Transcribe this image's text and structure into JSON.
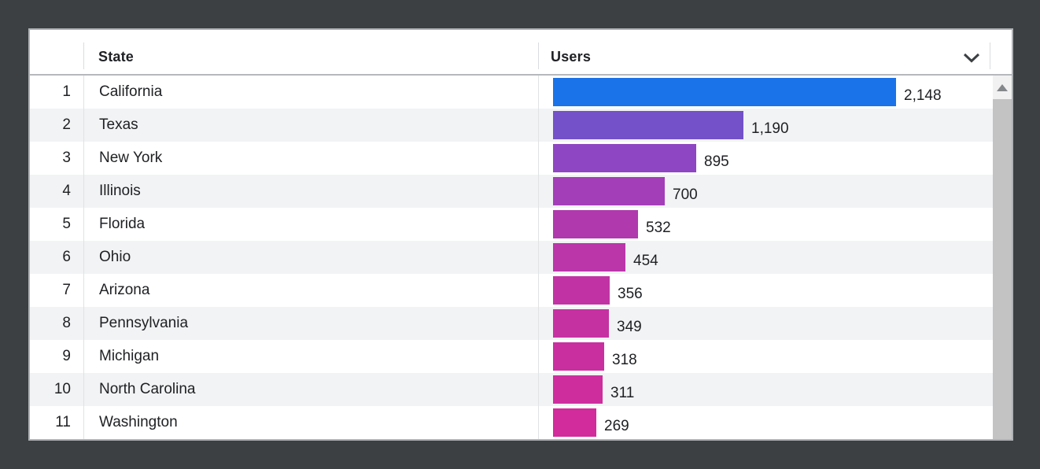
{
  "table": {
    "columns": {
      "state": "State",
      "users": "Users"
    },
    "max_users": 2148,
    "rows": [
      {
        "rank": "1",
        "state": "California",
        "users": 2148,
        "users_display": "2,148",
        "bar_color": "#1a73e8"
      },
      {
        "rank": "2",
        "state": "Texas",
        "users": 1190,
        "users_display": "1,190",
        "bar_color": "#7451c8"
      },
      {
        "rank": "3",
        "state": "New York",
        "users": 895,
        "users_display": "895",
        "bar_color": "#8f46c2"
      },
      {
        "rank": "4",
        "state": "Illinois",
        "users": 700,
        "users_display": "700",
        "bar_color": "#a33eb8"
      },
      {
        "rank": "5",
        "state": "Florida",
        "users": 532,
        "users_display": "532",
        "bar_color": "#b039ae"
      },
      {
        "rank": "6",
        "state": "Ohio",
        "users": 454,
        "users_display": "454",
        "bar_color": "#ba36a9"
      },
      {
        "rank": "7",
        "state": "Arizona",
        "users": 356,
        "users_display": "356",
        "bar_color": "#c133a4"
      },
      {
        "rank": "8",
        "state": "Pennsylvania",
        "users": 349,
        "users_display": "349",
        "bar_color": "#c631a2"
      },
      {
        "rank": "9",
        "state": "Michigan",
        "users": 318,
        "users_display": "318",
        "bar_color": "#ca2fa0"
      },
      {
        "rank": "10",
        "state": "North Carolina",
        "users": 311,
        "users_display": "311",
        "bar_color": "#ce2d9e"
      },
      {
        "rank": "11",
        "state": "Washington",
        "users": 269,
        "users_display": "269",
        "bar_color": "#d22b9c"
      }
    ]
  },
  "chart_data": {
    "type": "bar",
    "orientation": "horizontal",
    "categories": [
      "California",
      "Texas",
      "New York",
      "Illinois",
      "Florida",
      "Ohio",
      "Arizona",
      "Pennsylvania",
      "Michigan",
      "North Carolina",
      "Washington"
    ],
    "values": [
      2148,
      1190,
      895,
      700,
      532,
      454,
      356,
      349,
      318,
      311,
      269
    ],
    "value_labels": [
      "2,148",
      "1,190",
      "895",
      "700",
      "532",
      "454",
      "356",
      "349",
      "318",
      "311",
      "269"
    ],
    "xlabel": "Users",
    "ylabel": "State",
    "xlim": [
      0,
      2148
    ],
    "bar_colors": [
      "#1a73e8",
      "#7451c8",
      "#8f46c2",
      "#a33eb8",
      "#b039ae",
      "#ba36a9",
      "#c133a4",
      "#c631a2",
      "#ca2fa0",
      "#ce2d9e",
      "#d22b9c"
    ]
  },
  "colors": {
    "page_background": "#3c4043",
    "card_background": "#ffffff",
    "row_stripe": "#f1f3f4",
    "text": "#202124",
    "divider": "#e0e2e4",
    "header_border": "#b6b9bc",
    "scroll_thumb": "#c3c3c3",
    "scroll_track": "#f1f1f1"
  }
}
